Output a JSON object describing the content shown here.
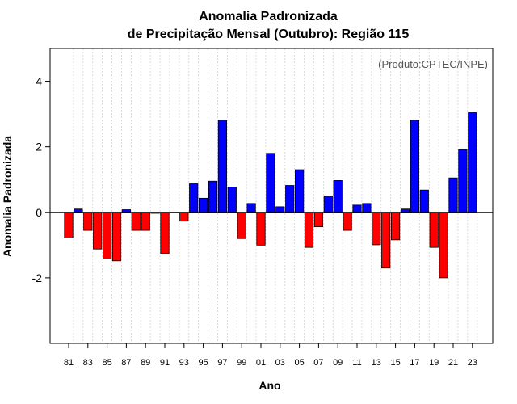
{
  "chart_data": {
    "type": "bar",
    "title": "Anomalia Padronizada",
    "subtitle": "de Precipitação Mensal (Outubro): Região 115",
    "xlabel": "Ano",
    "ylabel": "Anomalia Padronizada",
    "annotation": "(Produto:CPTEC/INPE)",
    "ylim": [
      -4,
      5
    ],
    "yticks": [
      -2,
      0,
      2,
      4
    ],
    "xtick_labels": [
      "81",
      "83",
      "85",
      "87",
      "89",
      "91",
      "93",
      "95",
      "97",
      "99",
      "01",
      "03",
      "05",
      "07",
      "09",
      "11",
      "13",
      "15",
      "17",
      "19",
      "21",
      "23"
    ],
    "years": [
      1981,
      1982,
      1983,
      1984,
      1985,
      1986,
      1987,
      1988,
      1989,
      1990,
      1991,
      1992,
      1993,
      1994,
      1995,
      1996,
      1997,
      1998,
      1999,
      2000,
      2001,
      2002,
      2003,
      2004,
      2005,
      2006,
      2007,
      2008,
      2009,
      2010,
      2011,
      2012,
      2013,
      2014,
      2015,
      2016,
      2017,
      2018,
      2019,
      2020,
      2021,
      2022,
      2023
    ],
    "values": [
      -0.78,
      0.1,
      -0.55,
      -1.12,
      -1.42,
      -1.48,
      0.08,
      -0.55,
      -0.55,
      -0.03,
      -1.25,
      -0.02,
      -0.27,
      0.87,
      0.43,
      0.95,
      2.82,
      0.77,
      -0.8,
      0.27,
      -1.0,
      1.8,
      0.17,
      0.82,
      1.3,
      -1.07,
      -0.44,
      0.5,
      0.97,
      -0.55,
      0.22,
      0.27,
      -0.99,
      -1.7,
      -0.84,
      0.1,
      2.82,
      0.68,
      -1.07,
      -2.0,
      1.05,
      1.92,
      3.04
    ],
    "colors": {
      "positive": "#0000ff",
      "negative": "#ff0000",
      "edge": "#000000",
      "grid": "#d3d3d3"
    }
  }
}
